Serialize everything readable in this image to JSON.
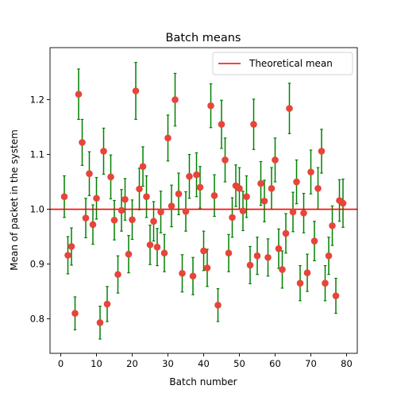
{
  "chart_data": {
    "type": "scatter",
    "title": "Batch means",
    "xlabel": "Batch number",
    "ylabel": "Mean of packet in the system",
    "xlim": [
      -3,
      83
    ],
    "ylim": [
      0.737,
      1.295
    ],
    "xticks": [
      0,
      10,
      20,
      30,
      40,
      50,
      60,
      70,
      80
    ],
    "yticks": [
      0.8,
      0.9,
      1.0,
      1.1,
      1.2
    ],
    "grid": false,
    "legend": {
      "position": "top-right",
      "entries": [
        "Theoretical mean"
      ]
    },
    "theoretical_mean": 1.0,
    "colors": {
      "points": "#e8443a",
      "errorbars": "#008000",
      "mean_line": "#ff0000"
    },
    "series": [
      {
        "x": [
          1,
          2,
          3,
          4,
          5,
          6,
          7,
          8,
          9,
          10,
          11,
          12,
          13,
          14,
          15,
          16,
          17,
          18,
          19,
          20,
          21,
          22,
          23,
          24,
          25,
          26,
          27,
          28,
          29,
          30,
          31,
          32,
          33,
          34,
          35,
          36,
          37,
          38,
          39,
          40,
          41,
          42,
          43,
          44,
          45,
          46,
          47,
          48,
          49,
          50,
          51,
          52,
          53,
          54,
          55,
          56,
          57,
          58,
          59,
          60,
          61,
          62,
          63,
          64,
          65,
          66,
          67,
          68,
          69,
          70,
          71,
          72,
          73,
          74,
          75,
          76,
          77,
          78,
          79
        ],
        "y": [
          1.023,
          0.916,
          0.932,
          0.81,
          1.21,
          1.122,
          0.984,
          1.065,
          0.972,
          1.02,
          0.793,
          1.106,
          0.827,
          1.059,
          0.98,
          0.881,
          0.998,
          1.018,
          0.918,
          0.981,
          1.216,
          1.037,
          1.078,
          1.023,
          0.935,
          0.978,
          0.931,
          0.995,
          0.92,
          1.13,
          1.006,
          1.2,
          1.028,
          0.883,
          0.996,
          1.06,
          0.878,
          1.063,
          1.04,
          0.924,
          0.893,
          1.189,
          1.025,
          0.825,
          1.155,
          1.09,
          0.92,
          0.985,
          1.043,
          1.038,
          0.997,
          1.023,
          0.898,
          1.155,
          0.915,
          1.047,
          1.015,
          0.912,
          1.038,
          1.09,
          0.928,
          0.89,
          0.956,
          1.184,
          0.995,
          1.05,
          0.865,
          0.993,
          0.884,
          1.068,
          0.942,
          1.038,
          1.106,
          0.865,
          0.915,
          0.97,
          0.842,
          1.016,
          1.011
        ],
        "err": [
          0.038,
          0.034,
          0.034,
          0.03,
          0.046,
          0.042,
          0.036,
          0.04,
          0.036,
          0.038,
          0.03,
          0.042,
          0.032,
          0.04,
          0.036,
          0.034,
          0.038,
          0.038,
          0.034,
          0.036,
          0.052,
          0.038,
          0.036,
          0.038,
          0.036,
          0.036,
          0.034,
          0.038,
          0.034,
          0.042,
          0.038,
          0.048,
          0.038,
          0.034,
          0.036,
          0.04,
          0.034,
          0.04,
          0.038,
          0.036,
          0.034,
          0.04,
          0.038,
          0.03,
          0.044,
          0.04,
          0.034,
          0.036,
          0.038,
          0.038,
          0.036,
          0.038,
          0.034,
          0.046,
          0.034,
          0.04,
          0.038,
          0.034,
          0.038,
          0.04,
          0.036,
          0.034,
          0.036,
          0.046,
          0.036,
          0.04,
          0.032,
          0.036,
          0.034,
          0.04,
          0.036,
          0.038,
          0.04,
          0.032,
          0.034,
          0.036,
          0.032,
          0.038,
          0.044
        ]
      }
    ]
  }
}
